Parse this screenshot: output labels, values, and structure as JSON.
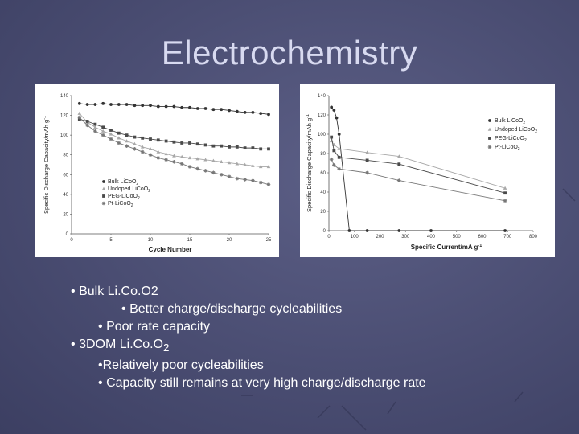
{
  "slide": {
    "title": "Electrochemistry"
  },
  "bullets": [
    {
      "marker": "•",
      "text": "Bulk Li.Co.O2"
    },
    {
      "marker": "•",
      "text": "Better charge/discharge cycleabilities"
    },
    {
      "marker": "•",
      "text": "Poor rate capacity"
    },
    {
      "marker": "•",
      "text": "3DOM Li.Co.O",
      "sub": "2"
    },
    {
      "marker": "•",
      "text": "Relatively poor cycleabilities"
    },
    {
      "marker": "•",
      "text": "Capacity still remains at very high charge/discharge rate"
    }
  ],
  "chart_data": [
    {
      "type": "line",
      "xlabel": "Cycle Number",
      "ylabel": "Specific Discharge Capacity/mAh g-1",
      "xlim": [
        0,
        25
      ],
      "ylim": [
        0,
        140
      ],
      "xticks": [
        0,
        5,
        10,
        15,
        20,
        25
      ],
      "yticks": [
        0,
        20,
        40,
        60,
        80,
        100,
        120,
        140
      ],
      "grid": false,
      "legend_position": "bottom-left",
      "x": [
        1,
        2,
        3,
        4,
        5,
        6,
        7,
        8,
        9,
        10,
        11,
        12,
        13,
        14,
        15,
        16,
        17,
        18,
        19,
        20,
        21,
        22,
        23,
        24,
        25
      ],
      "series": [
        {
          "name": "Bulk LiCoO2",
          "marker": "circle",
          "values": [
            132,
            131,
            131,
            132,
            131,
            131,
            131,
            130,
            130,
            130,
            129,
            129,
            129,
            128,
            128,
            127,
            127,
            126,
            126,
            125,
            124,
            123,
            123,
            122,
            121
          ]
        },
        {
          "name": "Undoped LiCoO2",
          "marker": "triangle",
          "values": [
            122,
            113,
            108,
            104,
            101,
            97,
            94,
            91,
            88,
            86,
            83,
            81,
            79,
            78,
            77,
            76,
            75,
            74,
            73,
            72,
            71,
            70,
            69,
            68,
            68
          ]
        },
        {
          "name": "PEG-LiCoO2",
          "marker": "square",
          "values": [
            116,
            114,
            111,
            108,
            105,
            102,
            100,
            98,
            97,
            96,
            95,
            94,
            93,
            92,
            92,
            91,
            90,
            89,
            89,
            88,
            88,
            87,
            87,
            86,
            86
          ]
        },
        {
          "name": "Pt-LiCoO2",
          "marker": "star",
          "values": [
            118,
            110,
            104,
            100,
            96,
            92,
            89,
            86,
            83,
            80,
            77,
            75,
            73,
            71,
            68,
            66,
            64,
            62,
            60,
            58,
            56,
            55,
            54,
            52,
            50
          ]
        }
      ]
    },
    {
      "type": "line",
      "xlabel": "Specific Current/mA g-1",
      "ylabel": "Specific Discharge Capacity/mAh g-1",
      "xlim": [
        0,
        800
      ],
      "ylim": [
        0,
        140
      ],
      "xticks": [
        0,
        100,
        200,
        300,
        400,
        500,
        600,
        700,
        800
      ],
      "yticks": [
        0,
        20,
        40,
        60,
        80,
        100,
        120,
        140
      ],
      "grid": false,
      "legend_position": "top-right",
      "series": [
        {
          "name": "Bulk LiCoO2",
          "marker": "circle",
          "x": [
            10,
            20,
            30,
            40,
            80,
            150,
            275,
            400,
            690
          ],
          "values": [
            128,
            125,
            117,
            100,
            0,
            0,
            0,
            0,
            0
          ]
        },
        {
          "name": "Undoped LiCoO2",
          "marker": "triangle",
          "x": [
            10,
            20,
            40,
            150,
            275,
            690
          ],
          "values": [
            93,
            89,
            85,
            81,
            77,
            44
          ]
        },
        {
          "name": "PEG-LiCoO2",
          "marker": "square",
          "x": [
            10,
            20,
            40,
            150,
            275,
            690
          ],
          "values": [
            97,
            83,
            76,
            73,
            69,
            39
          ]
        },
        {
          "name": "Pt-LiCoO2",
          "marker": "star",
          "x": [
            10,
            20,
            40,
            150,
            275,
            690
          ],
          "values": [
            74,
            68,
            64,
            60,
            52,
            31
          ]
        }
      ]
    }
  ]
}
